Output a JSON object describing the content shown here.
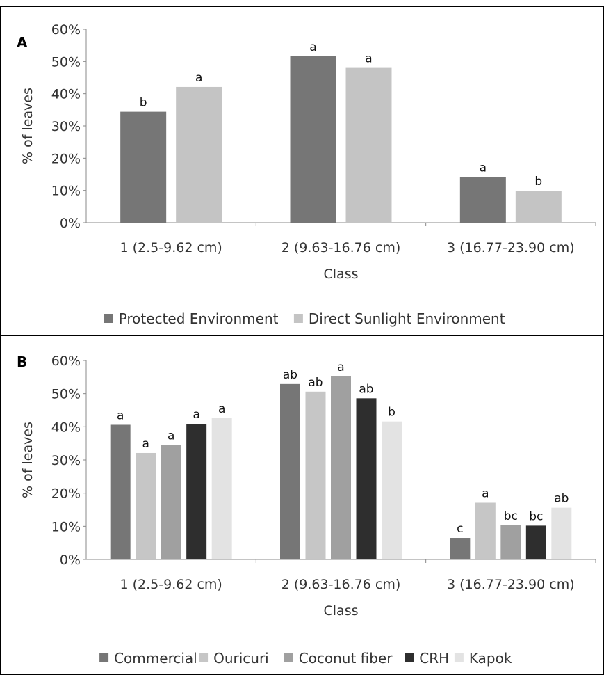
{
  "chart_data": [
    {
      "panel": "A",
      "type": "bar",
      "title": "",
      "xlabel": "Class",
      "ylabel": "% of leaves",
      "ylim": [
        0,
        60
      ],
      "yticks": [
        "0%",
        "10%",
        "20%",
        "30%",
        "40%",
        "50%",
        "60%"
      ],
      "categories": [
        "1 (2.5-9.62 cm)",
        "2 (9.63-16.76 cm)",
        "3 (16.77-23.90 cm)"
      ],
      "legend_position": "bottom",
      "grid": false,
      "series": [
        {
          "name": "Protected Environment",
          "color": "#767676",
          "values": [
            34.4,
            51.6,
            14.1
          ],
          "labels": [
            "b",
            "a",
            "a"
          ]
        },
        {
          "name": "Direct Sunlight Environment",
          "color": "#c4c4c4",
          "values": [
            42.1,
            48.0,
            9.9
          ],
          "labels": [
            "a",
            "a",
            "b"
          ]
        }
      ]
    },
    {
      "panel": "B",
      "type": "bar",
      "title": "",
      "xlabel": "Class",
      "ylabel": "% of leaves",
      "ylim": [
        0,
        60
      ],
      "yticks": [
        "0%",
        "10%",
        "20%",
        "30%",
        "40%",
        "50%",
        "60%"
      ],
      "categories": [
        "1 (2.5-9.62 cm)",
        "2 (9.63-16.76 cm)",
        "3 (16.77-23.90 cm)"
      ],
      "legend_position": "bottom",
      "grid": false,
      "series": [
        {
          "name": "Commercial",
          "color": "#767676",
          "values": [
            40.6,
            52.9,
            6.5
          ],
          "labels": [
            "a",
            "ab",
            "c"
          ]
        },
        {
          "name": "Ouricuri",
          "color": "#c6c6c6",
          "values": [
            32.1,
            50.6,
            17.1
          ],
          "labels": [
            "a",
            "ab",
            "a"
          ]
        },
        {
          "name": "Coconut fiber",
          "color": "#a0a0a0",
          "values": [
            34.5,
            55.2,
            10.3
          ],
          "labels": [
            "a",
            "a",
            "bc"
          ]
        },
        {
          "name": "CRH",
          "color": "#2e2e2e",
          "values": [
            40.9,
            48.6,
            10.2
          ],
          "labels": [
            "a",
            "ab",
            "bc"
          ]
        },
        {
          "name": "Kapok",
          "color": "#e3e3e3",
          "values": [
            42.6,
            41.6,
            15.6
          ],
          "labels": [
            "a",
            "b",
            "ab"
          ]
        }
      ]
    }
  ]
}
